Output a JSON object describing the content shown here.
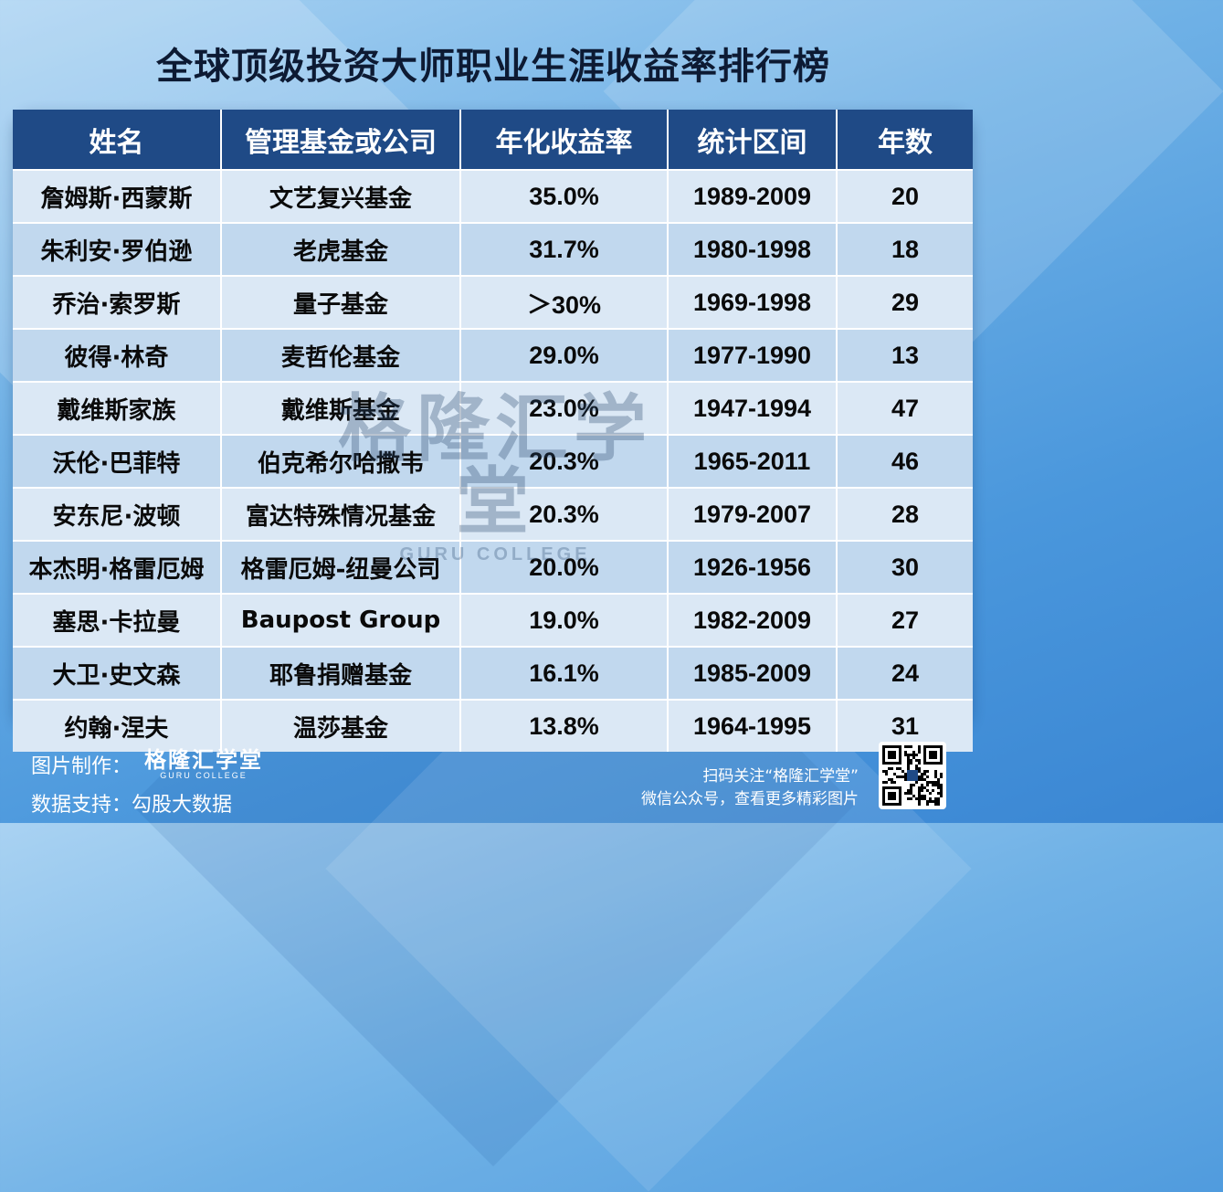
{
  "title": "全球顶级投资大师职业生涯收益率排行榜",
  "table": {
    "headers": [
      "姓名",
      "管理基金或公司",
      "年化收益率",
      "统计区间",
      "年数"
    ],
    "rows": [
      {
        "name": "詹姆斯·西蒙斯",
        "fund": "文艺复兴基金",
        "return": "35.0%",
        "period": "1989-2009",
        "years": "20"
      },
      {
        "name": "朱利安·罗伯逊",
        "fund": "老虎基金",
        "return": "31.7%",
        "period": "1980-1998",
        "years": "18"
      },
      {
        "name": "乔治·索罗斯",
        "fund": "量子基金",
        "return": "＞30%",
        "period": "1969-1998",
        "years": "29"
      },
      {
        "name": "彼得·林奇",
        "fund": "麦哲伦基金",
        "return": "29.0%",
        "period": "1977-1990",
        "years": "13"
      },
      {
        "name": "戴维斯家族",
        "fund": "戴维斯基金",
        "return": "23.0%",
        "period": "1947-1994",
        "years": "47"
      },
      {
        "name": "沃伦·巴菲特",
        "fund": "伯克希尔哈撒韦",
        "return": "20.3%",
        "period": "1965-2011",
        "years": "46"
      },
      {
        "name": "安东尼·波顿",
        "fund": "富达特殊情况基金",
        "return": "20.3%",
        "period": "1979-2007",
        "years": "28"
      },
      {
        "name": "本杰明·格雷厄姆",
        "fund": "格雷厄姆-纽曼公司",
        "return": "20.0%",
        "period": "1926-1956",
        "years": "30"
      },
      {
        "name": "塞思·卡拉曼",
        "fund": "Baupost Group",
        "return": "19.0%",
        "period": "1982-2009",
        "years": "27"
      },
      {
        "name": "大卫·史文森",
        "fund": "耶鲁捐赠基金",
        "return": "16.1%",
        "period": "1985-2009",
        "years": "24"
      },
      {
        "name": "约翰·涅夫",
        "fund": "温莎基金",
        "return": "13.8%",
        "period": "1964-1995",
        "years": "31"
      }
    ]
  },
  "watermark": {
    "main": "格隆汇学堂",
    "sub": "GURU COLLEGE"
  },
  "footer": {
    "made_by_label": "图片制作：",
    "logo_main": "格隆汇学堂",
    "logo_sub": "GURU COLLEGE",
    "data_label": "数据支持：勾股大数据",
    "scan_line1": "扫码关注“格隆汇学堂”",
    "scan_line2": "微信公众号，查看更多精彩图片"
  },
  "colors": {
    "header_bg": "#1f4a86",
    "row_light": "#dbe8f5",
    "row_dark": "#c1d8ee"
  },
  "icons": {
    "qr": "qr-code-icon"
  }
}
